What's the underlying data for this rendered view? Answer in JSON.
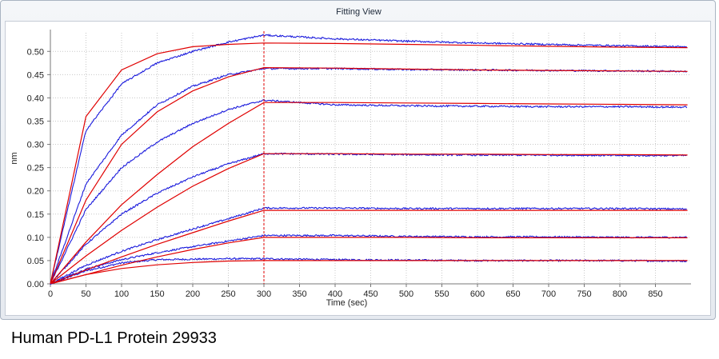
{
  "window": {
    "title": "Fitting View"
  },
  "caption": "Human PD-L1 Protein 29933",
  "chart_data": {
    "type": "line",
    "title": "",
    "xlabel": "Time (sec)",
    "ylabel": "nm",
    "xlim": [
      0,
      900
    ],
    "ylim": [
      0,
      0.54
    ],
    "x_ticks": [
      0,
      50,
      100,
      150,
      200,
      250,
      300,
      350,
      400,
      450,
      500,
      550,
      600,
      650,
      700,
      750,
      800,
      850
    ],
    "y_ticks": [
      0.0,
      0.05,
      0.1,
      0.15,
      0.2,
      0.25,
      0.3,
      0.35,
      0.4,
      0.45,
      0.5
    ],
    "y_tick_labels": [
      "0.00",
      "0.05",
      "0.10",
      "0.15",
      "0.20",
      "0.25",
      "0.30",
      "0.35",
      "0.40",
      "0.45",
      "0.50"
    ],
    "grid": true,
    "association_end": 300,
    "marker_line_color": "#e00000",
    "data_color": "#1a1adc",
    "fit_color": "#e00000",
    "series": [
      {
        "data_points": [
          [
            0,
            0
          ],
          [
            50,
            0.028
          ],
          [
            100,
            0.045
          ],
          [
            150,
            0.052
          ],
          [
            200,
            0.053
          ],
          [
            250,
            0.054
          ],
          [
            300,
            0.054
          ],
          [
            400,
            0.052
          ],
          [
            500,
            0.051
          ],
          [
            600,
            0.05
          ],
          [
            700,
            0.05
          ],
          [
            800,
            0.05
          ],
          [
            895,
            0.049
          ]
        ],
        "fit_points": [
          [
            0,
            0
          ],
          [
            50,
            0.02
          ],
          [
            100,
            0.033
          ],
          [
            150,
            0.041
          ],
          [
            200,
            0.046
          ],
          [
            250,
            0.049
          ],
          [
            300,
            0.05
          ],
          [
            400,
            0.05
          ],
          [
            500,
            0.05
          ],
          [
            600,
            0.05
          ],
          [
            700,
            0.05
          ],
          [
            800,
            0.05
          ],
          [
            895,
            0.05
          ]
        ]
      },
      {
        "data_points": [
          [
            0,
            0
          ],
          [
            50,
            0.032
          ],
          [
            100,
            0.052
          ],
          [
            150,
            0.067
          ],
          [
            200,
            0.08
          ],
          [
            250,
            0.092
          ],
          [
            300,
            0.104
          ],
          [
            400,
            0.104
          ],
          [
            500,
            0.102
          ],
          [
            600,
            0.101
          ],
          [
            700,
            0.101
          ],
          [
            800,
            0.1
          ],
          [
            895,
            0.1
          ]
        ],
        "fit_points": [
          [
            0,
            0
          ],
          [
            50,
            0.02
          ],
          [
            100,
            0.04
          ],
          [
            150,
            0.058
          ],
          [
            200,
            0.074
          ],
          [
            250,
            0.088
          ],
          [
            300,
            0.1
          ],
          [
            400,
            0.1
          ],
          [
            500,
            0.1
          ],
          [
            600,
            0.099
          ],
          [
            700,
            0.099
          ],
          [
            800,
            0.099
          ],
          [
            895,
            0.099
          ]
        ]
      },
      {
        "data_points": [
          [
            0,
            0
          ],
          [
            50,
            0.04
          ],
          [
            100,
            0.07
          ],
          [
            150,
            0.095
          ],
          [
            200,
            0.118
          ],
          [
            250,
            0.14
          ],
          [
            300,
            0.163
          ],
          [
            400,
            0.163
          ],
          [
            500,
            0.162
          ],
          [
            600,
            0.162
          ],
          [
            700,
            0.162
          ],
          [
            800,
            0.162
          ],
          [
            895,
            0.161
          ]
        ],
        "fit_points": [
          [
            0,
            0
          ],
          [
            50,
            0.03
          ],
          [
            100,
            0.058
          ],
          [
            150,
            0.085
          ],
          [
            200,
            0.11
          ],
          [
            250,
            0.135
          ],
          [
            300,
            0.158
          ],
          [
            400,
            0.158
          ],
          [
            500,
            0.158
          ],
          [
            600,
            0.158
          ],
          [
            700,
            0.158
          ],
          [
            800,
            0.158
          ],
          [
            895,
            0.158
          ]
        ]
      },
      {
        "data_points": [
          [
            0,
            0
          ],
          [
            50,
            0.085
          ],
          [
            100,
            0.15
          ],
          [
            150,
            0.195
          ],
          [
            200,
            0.23
          ],
          [
            250,
            0.258
          ],
          [
            300,
            0.28
          ],
          [
            400,
            0.279
          ],
          [
            500,
            0.278
          ],
          [
            600,
            0.277
          ],
          [
            700,
            0.277
          ],
          [
            800,
            0.276
          ],
          [
            895,
            0.276
          ]
        ],
        "fit_points": [
          [
            0,
            0
          ],
          [
            50,
            0.06
          ],
          [
            100,
            0.115
          ],
          [
            150,
            0.165
          ],
          [
            200,
            0.21
          ],
          [
            250,
            0.248
          ],
          [
            300,
            0.28
          ],
          [
            400,
            0.28
          ],
          [
            500,
            0.279
          ],
          [
            600,
            0.279
          ],
          [
            700,
            0.278
          ],
          [
            800,
            0.278
          ],
          [
            895,
            0.277
          ]
        ]
      },
      {
        "data_points": [
          [
            0,
            0
          ],
          [
            50,
            0.16
          ],
          [
            100,
            0.25
          ],
          [
            150,
            0.305
          ],
          [
            200,
            0.345
          ],
          [
            250,
            0.375
          ],
          [
            300,
            0.395
          ],
          [
            400,
            0.385
          ],
          [
            500,
            0.383
          ],
          [
            600,
            0.382
          ],
          [
            700,
            0.381
          ],
          [
            800,
            0.381
          ],
          [
            895,
            0.38
          ]
        ],
        "fit_points": [
          [
            0,
            0
          ],
          [
            50,
            0.09
          ],
          [
            100,
            0.17
          ],
          [
            150,
            0.235
          ],
          [
            200,
            0.295
          ],
          [
            250,
            0.345
          ],
          [
            300,
            0.39
          ],
          [
            400,
            0.39
          ],
          [
            500,
            0.389
          ],
          [
            600,
            0.388
          ],
          [
            700,
            0.387
          ],
          [
            800,
            0.386
          ],
          [
            895,
            0.385
          ]
        ]
      },
      {
        "data_points": [
          [
            0,
            0
          ],
          [
            50,
            0.215
          ],
          [
            100,
            0.32
          ],
          [
            150,
            0.385
          ],
          [
            200,
            0.425
          ],
          [
            250,
            0.45
          ],
          [
            300,
            0.463
          ],
          [
            400,
            0.463
          ],
          [
            500,
            0.461
          ],
          [
            600,
            0.46
          ],
          [
            700,
            0.459
          ],
          [
            800,
            0.458
          ],
          [
            895,
            0.457
          ]
        ],
        "fit_points": [
          [
            0,
            0
          ],
          [
            50,
            0.18
          ],
          [
            100,
            0.3
          ],
          [
            150,
            0.37
          ],
          [
            200,
            0.415
          ],
          [
            250,
            0.445
          ],
          [
            300,
            0.465
          ],
          [
            400,
            0.464
          ],
          [
            500,
            0.462
          ],
          [
            600,
            0.46
          ],
          [
            700,
            0.459
          ],
          [
            800,
            0.458
          ],
          [
            895,
            0.457
          ]
        ]
      },
      {
        "data_points": [
          [
            0,
            0
          ],
          [
            50,
            0.33
          ],
          [
            100,
            0.43
          ],
          [
            150,
            0.475
          ],
          [
            200,
            0.5
          ],
          [
            250,
            0.52
          ],
          [
            300,
            0.535
          ],
          [
            400,
            0.527
          ],
          [
            500,
            0.522
          ],
          [
            600,
            0.518
          ],
          [
            700,
            0.515
          ],
          [
            800,
            0.512
          ],
          [
            895,
            0.51
          ]
        ],
        "fit_points": [
          [
            0,
            0
          ],
          [
            50,
            0.36
          ],
          [
            100,
            0.46
          ],
          [
            150,
            0.495
          ],
          [
            200,
            0.51
          ],
          [
            250,
            0.515
          ],
          [
            300,
            0.518
          ],
          [
            400,
            0.517
          ],
          [
            500,
            0.515
          ],
          [
            600,
            0.513
          ],
          [
            700,
            0.511
          ],
          [
            800,
            0.509
          ],
          [
            895,
            0.508
          ]
        ]
      }
    ]
  }
}
